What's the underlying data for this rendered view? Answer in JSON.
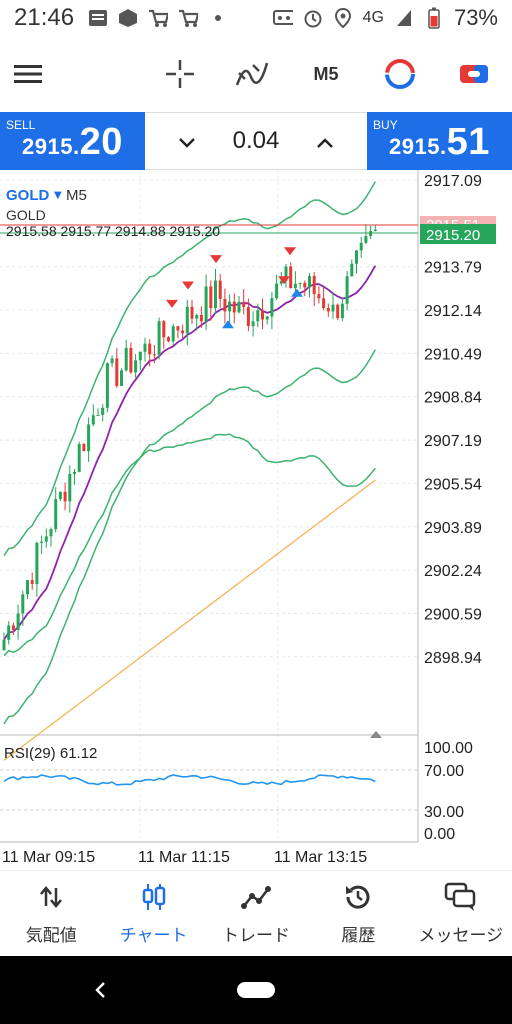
{
  "status": {
    "time": "21:46",
    "network": "4G",
    "battery": "73%"
  },
  "toolbar": {
    "timeframe": "M5"
  },
  "trade": {
    "sell_label": "SELL",
    "sell_price_prefix": "2915.",
    "sell_price_big": "20",
    "buy_label": "BUY",
    "buy_price_prefix": "2915.",
    "buy_price_big": "51",
    "lot": "0.04"
  },
  "chart_header": {
    "symbol": "GOLD",
    "timeframe": "M5",
    "name": "GOLD",
    "ohlc": "2915.58 2915.77 2914.88 2915.20"
  },
  "chart_data": {
    "type": "candlestick",
    "symbol": "GOLD",
    "timeframe": "M5",
    "y_ticks": [
      "2917.09",
      "2913.79",
      "2912.14",
      "2910.49",
      "2908.84",
      "2907.19",
      "2905.54",
      "2903.89",
      "2902.24",
      "2900.59",
      "2898.94"
    ],
    "ylim": [
      2897.6,
      2917.09
    ],
    "bid_line": "2915.20",
    "ask_line": "2915.51",
    "x_ticks": [
      "11 Mar 09:15",
      "11 Mar 11:15",
      "11 Mar 13:15"
    ],
    "rsi": {
      "label": "RSI(29) 61.12",
      "value": 61.12,
      "ticks": [
        "100.00",
        "70.00",
        "30.00",
        "0.00"
      ]
    }
  },
  "nav": {
    "quotes": "気配値",
    "chart": "チャート",
    "trade": "トレード",
    "history": "履歴",
    "messages": "メッセージ"
  },
  "colors": {
    "accent": "#1e6ee8",
    "bear": "#e53935",
    "bull": "#26a65b",
    "band": "#3cb371",
    "ma": "#8e24aa",
    "long_ma": "#f0b24a"
  }
}
